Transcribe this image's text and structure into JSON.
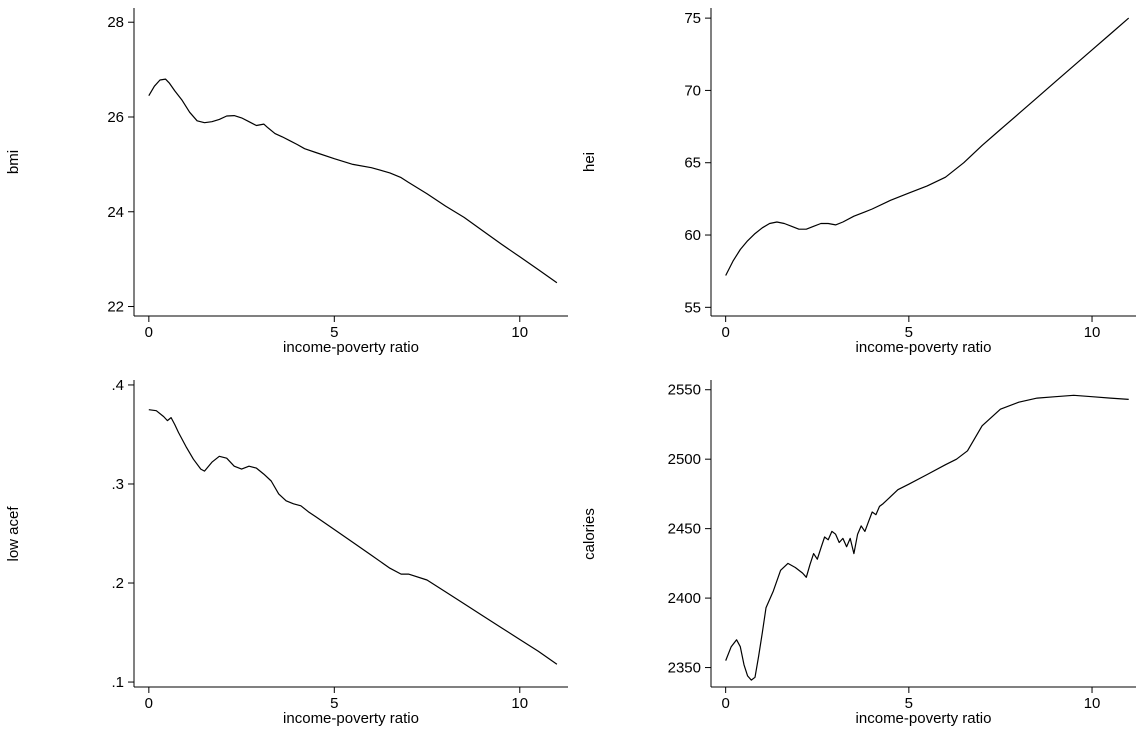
{
  "chart_data": [
    {
      "type": "line",
      "title": "",
      "xlabel": "income-poverty ratio",
      "ylabel": "bmi",
      "xlim": [
        -0.4,
        11.3
      ],
      "ylim": [
        21.8,
        28.3
      ],
      "xticks": [
        0,
        5,
        10
      ],
      "yticks": [
        22,
        24,
        26,
        28
      ],
      "ytick_labels": [
        "22",
        "24",
        "26",
        "28"
      ],
      "grid": false,
      "legend": "none",
      "series": [
        {
          "x": [
            0,
            0.15,
            0.3,
            0.45,
            0.55,
            0.7,
            0.9,
            1.1,
            1.3,
            1.5,
            1.7,
            1.9,
            2.1,
            2.3,
            2.5,
            2.7,
            2.9,
            3.1,
            3.2,
            3.4,
            3.6,
            3.8,
            4.0,
            4.2,
            4.5,
            5.0,
            5.5,
            6.0,
            6.5,
            6.8,
            7.0,
            7.5,
            8.0,
            8.5,
            9.0,
            9.5,
            10.0,
            10.5,
            11.0
          ],
          "y": [
            26.45,
            26.65,
            26.78,
            26.8,
            26.72,
            26.55,
            26.35,
            26.1,
            25.92,
            25.88,
            25.9,
            25.95,
            26.02,
            26.03,
            25.98,
            25.9,
            25.82,
            25.85,
            25.78,
            25.65,
            25.58,
            25.5,
            25.42,
            25.33,
            25.25,
            25.12,
            25.0,
            24.93,
            24.82,
            24.72,
            24.62,
            24.38,
            24.12,
            23.88,
            23.6,
            23.32,
            23.05,
            22.78,
            22.5
          ]
        }
      ]
    },
    {
      "type": "line",
      "title": "",
      "xlabel": "income-poverty ratio",
      "ylabel": "hei",
      "xlim": [
        -0.4,
        11.2
      ],
      "ylim": [
        54.4,
        75.7
      ],
      "xticks": [
        0,
        5,
        10
      ],
      "yticks": [
        55,
        60,
        65,
        70,
        75
      ],
      "ytick_labels": [
        "55",
        "60",
        "65",
        "70",
        "75"
      ],
      "grid": false,
      "legend": "none",
      "series": [
        {
          "x": [
            0,
            0.2,
            0.4,
            0.6,
            0.8,
            1.0,
            1.2,
            1.4,
            1.6,
            1.8,
            2.0,
            2.2,
            2.4,
            2.6,
            2.8,
            3.0,
            3.2,
            3.5,
            3.8,
            4.0,
            4.5,
            5.0,
            5.5,
            6.0,
            6.5,
            7.0,
            7.5,
            8.0,
            8.5,
            9.0,
            9.5,
            10.0,
            10.5,
            11.0
          ],
          "y": [
            57.2,
            58.2,
            59.0,
            59.6,
            60.1,
            60.5,
            60.8,
            60.9,
            60.8,
            60.6,
            60.4,
            60.4,
            60.6,
            60.8,
            60.8,
            60.7,
            60.9,
            61.3,
            61.6,
            61.8,
            62.4,
            62.9,
            63.4,
            64.0,
            65.0,
            66.2,
            67.3,
            68.4,
            69.5,
            70.6,
            71.7,
            72.8,
            73.9,
            75.0
          ]
        }
      ]
    },
    {
      "type": "line",
      "title": "",
      "xlabel": "income-poverty ratio",
      "ylabel": "low acef",
      "xlim": [
        -0.4,
        11.3
      ],
      "ylim": [
        0.095,
        0.405
      ],
      "xticks": [
        0,
        5,
        10
      ],
      "yticks": [
        0.1,
        0.2,
        0.3,
        0.4
      ],
      "ytick_labels": [
        ".1",
        ".2",
        ".3",
        ".4"
      ],
      "grid": false,
      "legend": "none",
      "series": [
        {
          "x": [
            0,
            0.2,
            0.4,
            0.5,
            0.6,
            0.7,
            0.8,
            1.0,
            1.2,
            1.4,
            1.5,
            1.7,
            1.9,
            2.1,
            2.3,
            2.5,
            2.7,
            2.9,
            3.1,
            3.3,
            3.5,
            3.7,
            3.9,
            4.1,
            4.3,
            4.5,
            5.0,
            5.5,
            6.0,
            6.5,
            6.8,
            7.0,
            7.5,
            8.0,
            8.5,
            9.0,
            9.5,
            10.0,
            10.5,
            11.0
          ],
          "y": [
            0.375,
            0.374,
            0.368,
            0.364,
            0.367,
            0.36,
            0.352,
            0.338,
            0.325,
            0.315,
            0.313,
            0.322,
            0.328,
            0.326,
            0.318,
            0.315,
            0.318,
            0.316,
            0.31,
            0.303,
            0.29,
            0.283,
            0.28,
            0.278,
            0.272,
            0.267,
            0.254,
            0.241,
            0.228,
            0.215,
            0.209,
            0.209,
            0.203,
            0.191,
            0.179,
            0.167,
            0.155,
            0.143,
            0.131,
            0.118
          ]
        }
      ]
    },
    {
      "type": "line",
      "title": "",
      "xlabel": "income-poverty ratio",
      "ylabel": "calories",
      "xlim": [
        -0.4,
        11.2
      ],
      "ylim": [
        2336,
        2557
      ],
      "xticks": [
        0,
        5,
        10
      ],
      "yticks": [
        2350,
        2400,
        2450,
        2500,
        2550
      ],
      "ytick_labels": [
        "2350",
        "2400",
        "2450",
        "2500",
        "2550"
      ],
      "grid": false,
      "legend": "none",
      "series": [
        {
          "x": [
            0,
            0.15,
            0.3,
            0.4,
            0.5,
            0.6,
            0.7,
            0.8,
            0.9,
            1.0,
            1.1,
            1.3,
            1.5,
            1.7,
            1.9,
            2.1,
            2.2,
            2.3,
            2.4,
            2.5,
            2.6,
            2.7,
            2.8,
            2.9,
            3.0,
            3.1,
            3.2,
            3.3,
            3.4,
            3.5,
            3.6,
            3.7,
            3.8,
            3.9,
            4.0,
            4.1,
            4.2,
            4.3,
            4.5,
            4.7,
            5.0,
            5.5,
            6.0,
            6.3,
            6.6,
            7.0,
            7.5,
            8.0,
            8.5,
            9.0,
            9.5,
            10.0,
            10.5,
            11.0
          ],
          "y": [
            2355,
            2365,
            2370,
            2365,
            2352,
            2344,
            2341,
            2343,
            2358,
            2375,
            2393,
            2405,
            2420,
            2425,
            2422,
            2418,
            2415,
            2424,
            2432,
            2428,
            2436,
            2444,
            2442,
            2448,
            2446,
            2440,
            2443,
            2437,
            2443,
            2432,
            2446,
            2452,
            2448,
            2455,
            2462,
            2460,
            2466,
            2468,
            2473,
            2478,
            2482,
            2489,
            2496,
            2500,
            2506,
            2524,
            2536,
            2541,
            2544,
            2545,
            2546,
            2545,
            2544,
            2543
          ]
        }
      ]
    }
  ]
}
